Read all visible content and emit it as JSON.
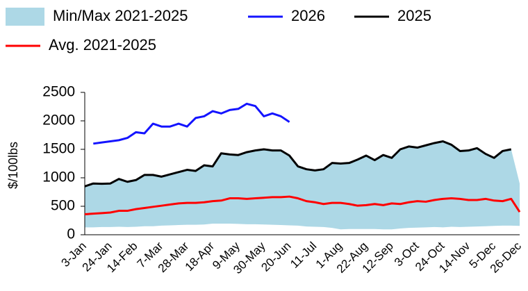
{
  "chart_data": {
    "type": "line",
    "y_label": "$/100lbs",
    "categories": [
      "3-Jan",
      null,
      null,
      "24-Jan",
      null,
      null,
      "14-Feb",
      null,
      null,
      "7-Mar",
      null,
      null,
      "28-Mar",
      null,
      null,
      "18-Apr",
      null,
      null,
      "9-May",
      null,
      null,
      "30-May",
      null,
      null,
      "20-Jun",
      null,
      null,
      "11-Jul",
      null,
      null,
      "1-Aug",
      null,
      null,
      "22-Aug",
      null,
      null,
      "12-Sep",
      null,
      null,
      "3-Oct",
      null,
      null,
      "24-Oct",
      null,
      null,
      "14-Nov",
      null,
      null,
      "5-Dec",
      null,
      null,
      "26-Dec"
    ],
    "ylim": [
      0,
      2500
    ],
    "yticks": [
      0,
      500,
      1000,
      1500,
      2000,
      2500
    ],
    "series": [
      {
        "name": "Min/Max 2021-2025",
        "type": "area",
        "color": "#add8e6",
        "min": [
          130,
          130,
          135,
          135,
          140,
          135,
          140,
          150,
          150,
          160,
          165,
          170,
          175,
          175,
          180,
          195,
          195,
          195,
          190,
          185,
          185,
          180,
          175,
          170,
          165,
          160,
          145,
          140,
          135,
          120,
          95,
          100,
          100,
          100,
          100,
          95,
          95,
          110,
          120,
          125,
          130,
          135,
          130,
          140,
          135,
          140,
          145,
          150,
          155,
          160,
          160,
          155
        ],
        "max": [
          850,
          900,
          895,
          900,
          980,
          930,
          960,
          1050,
          1050,
          1020,
          1060,
          1100,
          1140,
          1120,
          1220,
          1200,
          1430,
          1410,
          1400,
          1450,
          1480,
          1500,
          1480,
          1480,
          1390,
          1200,
          1150,
          1130,
          1150,
          1260,
          1250,
          1260,
          1320,
          1390,
          1310,
          1400,
          1350,
          1500,
          1550,
          1530,
          1570,
          1610,
          1640,
          1580,
          1470,
          1480,
          1520,
          1420,
          1350,
          1470,
          1500,
          900
        ]
      },
      {
        "name": "2026",
        "color": "#1414ff",
        "values": [
          null,
          1600,
          1620,
          1640,
          1660,
          1700,
          1800,
          1780,
          1950,
          1900,
          1900,
          1950,
          1900,
          2050,
          2080,
          2170,
          2130,
          2190,
          2210,
          2300,
          2260,
          2080,
          2130,
          2080,
          1980,
          null,
          null,
          null,
          null,
          null,
          null,
          null,
          null,
          null,
          null,
          null,
          null,
          null,
          null,
          null,
          null,
          null,
          null,
          null,
          null,
          null,
          null,
          null,
          null,
          null,
          null,
          null
        ]
      },
      {
        "name": "2025",
        "color": "#000000",
        "values": [
          850,
          900,
          895,
          900,
          980,
          930,
          960,
          1050,
          1050,
          1020,
          1060,
          1100,
          1140,
          1120,
          1220,
          1200,
          1430,
          1410,
          1400,
          1450,
          1480,
          1500,
          1480,
          1480,
          1390,
          1200,
          1150,
          1130,
          1150,
          1260,
          1250,
          1260,
          1320,
          1390,
          1310,
          1400,
          1350,
          1500,
          1550,
          1530,
          1570,
          1610,
          1640,
          1580,
          1470,
          1480,
          1520,
          1420,
          1350,
          1470,
          1500,
          null
        ]
      },
      {
        "name": "Avg. 2021-2025",
        "color": "#ff0000",
        "values": [
          360,
          370,
          380,
          390,
          420,
          420,
          450,
          470,
          490,
          510,
          530,
          550,
          560,
          560,
          570,
          590,
          600,
          640,
          640,
          630,
          640,
          650,
          660,
          660,
          670,
          640,
          590,
          570,
          540,
          560,
          560,
          540,
          510,
          520,
          540,
          520,
          550,
          540,
          570,
          590,
          580,
          610,
          630,
          640,
          630,
          610,
          610,
          630,
          600,
          590,
          630,
          400
        ]
      }
    ]
  }
}
